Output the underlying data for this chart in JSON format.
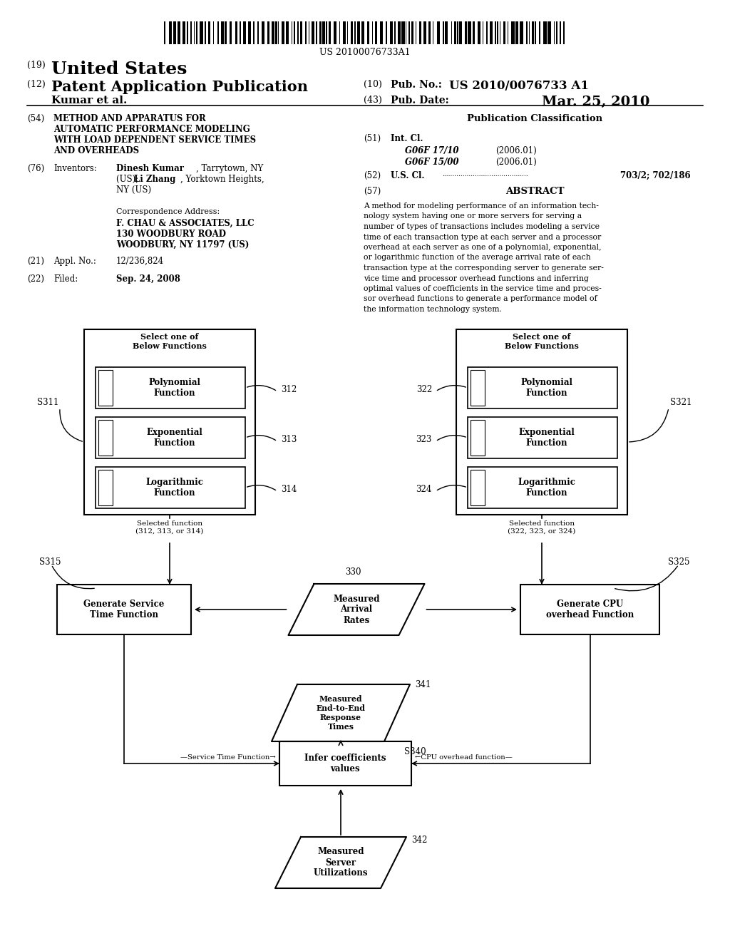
{
  "bg_color": "#ffffff",
  "barcode_text": "US 20100076733A1",
  "header_line1_num": "(19)",
  "header_line1_text": "United States",
  "header_line2_num": "(12)",
  "header_line2_text": "Patent Application Publication",
  "header_pubno_num": "(10)",
  "header_pubno_label": "Pub. No.:",
  "header_pubno_val": "US 2010/0076733 A1",
  "header_author": "Kumar et al.",
  "header_date_num": "(43)",
  "header_date_label": "Pub. Date:",
  "header_date_val": "Mar. 25, 2010",
  "item54_num": "(54)",
  "item54_lines": [
    "METHOD AND APPARATUS FOR",
    "AUTOMATIC PERFORMANCE MODELING",
    "WITH LOAD DEPENDENT SERVICE TIMES",
    "AND OVERHEADS"
  ],
  "item76_num": "(76)",
  "item76_label": "Inventors:",
  "inventor1_bold": "Dinesh Kumar",
  "inventor1_rest": ", Tarrytown, NY",
  "inventor2_pre": "(US); ",
  "inventor2_bold": "Li Zhang",
  "inventor2_rest": ", Yorktown Heights,",
  "inventor3": "NY (US)",
  "corr_label": "Correspondence Address:",
  "corr_lines": [
    "F. CHAU & ASSOCIATES, LLC",
    "130 WOODBURY ROAD",
    "WOODBURY, NY 11797 (US)"
  ],
  "item21_num": "(21)",
  "item21_label": "Appl. No.:",
  "item21_val": "12/236,824",
  "item22_num": "(22)",
  "item22_label": "Filed:",
  "item22_val": "Sep. 24, 2008",
  "pub_class_title": "Publication Classification",
  "item51_num": "(51)",
  "item51_label": "Int. Cl.",
  "g1_code": "G06F 17/10",
  "g1_year": "(2006.01)",
  "g2_code": "G06F 15/00",
  "g2_year": "(2006.01)",
  "item52_num": "(52)",
  "item52_label": "U.S. Cl.",
  "item52_val": "703/2; 702/186",
  "item57_num": "(57)",
  "item57_label": "ABSTRACT",
  "abstract_lines": [
    "A method for modeling performance of an information tech-",
    "nology system having one or more servers for serving a",
    "number of types of transactions includes modeling a service",
    "time of each transaction type at each server and a processor",
    "overhead at each server as one of a polynomial, exponential,",
    "or logarithmic function of the average arrival rate of each",
    "transaction type at the corresponding server to generate ser-",
    "vice time and processor overhead functions and inferring",
    "optimal values of coefficients in the service time and proces-",
    "sor overhead functions to generate a performance model of",
    "the information technology system."
  ],
  "diag_S311": "S311",
  "diag_S321": "S321",
  "diag_S315": "S315",
  "diag_S325": "S325",
  "diag_left_title": "Select one of\nBelow Functions",
  "diag_right_title": "Select one of\nBelow Functions",
  "diag_inner_labels": [
    "Polynomial\nFunction",
    "Exponential\nFunction",
    "Logarithmic\nFunction"
  ],
  "diag_ref_left": [
    "312",
    "313",
    "314"
  ],
  "diag_ref_right": [
    "322",
    "323",
    "324"
  ],
  "diag_sel_left": "Selected function\n(312, 313, or 314)",
  "diag_sel_right": "Selected function\n(322, 323, or 324)",
  "diag_stf_label": "Generate Service\nTime Function",
  "diag_cpu_label": "Generate CPU\noverhead Function",
  "diag_mar_label": "Measured\nArrival\nRates",
  "diag_mar_ref": "330",
  "diag_me_label": "Measured\nEnd-to-End\nResponse\nTimes",
  "diag_me_ref": "341",
  "diag_me_step": "S340",
  "diag_ic_label": "Infer coefficients\nvalues",
  "diag_msu_label": "Measured\nServer\nUtilizations",
  "diag_msu_ref": "342",
  "diag_stf_arrow": "—Service Time Function→",
  "diag_cpu_arrow": "←CPU overhead function—"
}
